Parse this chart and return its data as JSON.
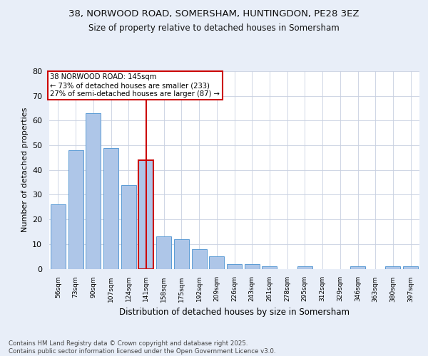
{
  "title_line1": "38, NORWOOD ROAD, SOMERSHAM, HUNTINGDON, PE28 3EZ",
  "title_line2": "Size of property relative to detached houses in Somersham",
  "xlabel": "Distribution of detached houses by size in Somersham",
  "ylabel": "Number of detached properties",
  "footnote": "Contains HM Land Registry data © Crown copyright and database right 2025.\nContains public sector information licensed under the Open Government Licence v3.0.",
  "categories": [
    "56sqm",
    "73sqm",
    "90sqm",
    "107sqm",
    "124sqm",
    "141sqm",
    "158sqm",
    "175sqm",
    "192sqm",
    "209sqm",
    "226sqm",
    "243sqm",
    "261sqm",
    "278sqm",
    "295sqm",
    "312sqm",
    "329sqm",
    "346sqm",
    "363sqm",
    "380sqm",
    "397sqm"
  ],
  "values": [
    26,
    48,
    63,
    49,
    34,
    44,
    13,
    12,
    8,
    5,
    2,
    2,
    1,
    0,
    1,
    0,
    0,
    1,
    0,
    1,
    1
  ],
  "bar_color": "#aec6e8",
  "bar_edge_color": "#5b9bd5",
  "highlight_bar_index": 5,
  "highlight_color": "#cc0000",
  "annotation_text": "38 NORWOOD ROAD: 145sqm\n← 73% of detached houses are smaller (233)\n27% of semi-detached houses are larger (87) →",
  "annotation_box_color": "#ffffff",
  "annotation_box_edge": "#cc0000",
  "ylim": [
    0,
    80
  ],
  "yticks": [
    0,
    10,
    20,
    30,
    40,
    50,
    60,
    70,
    80
  ],
  "background_color": "#e8eef8",
  "plot_background": "#ffffff",
  "grid_color": "#c8d0e0"
}
